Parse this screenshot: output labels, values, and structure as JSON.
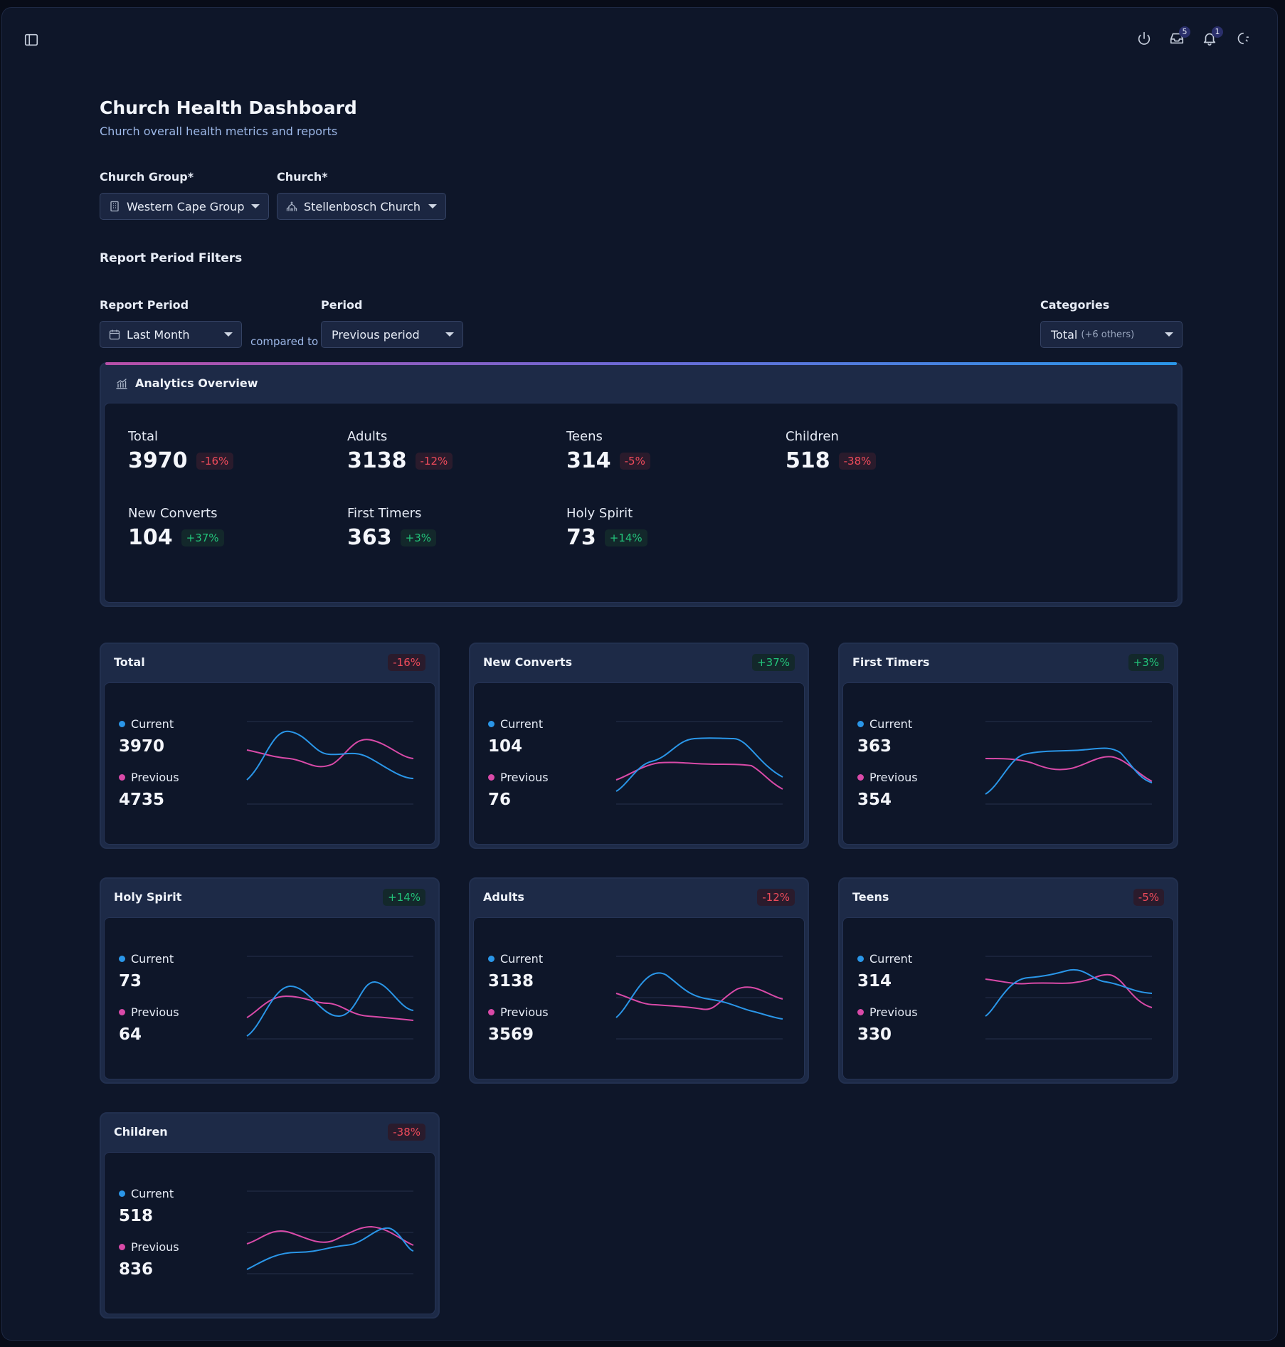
{
  "header": {
    "icons": [
      "sidebar-toggle-icon",
      "power-icon",
      "inbox-icon",
      "bell-icon",
      "theme-icon"
    ],
    "inbox_badge": "5",
    "bell_badge": "1"
  },
  "page": {
    "title": "Church Health Dashboard",
    "subtitle": "Church overall health metrics and reports"
  },
  "filters": {
    "church_group_label": "Church Group*",
    "church_group_value": "Western Cape Group",
    "church_label": "Church*",
    "church_value": "Stellenbosch Church",
    "section_title": "Report Period Filters",
    "report_period_label": "Report Period",
    "report_period_value": "Last Month",
    "compared_to": "compared to",
    "period_label": "Period",
    "period_value": "Previous period",
    "categories_label": "Categories",
    "categories_value": "Total",
    "categories_more": "(+6 others)"
  },
  "overview": {
    "title": "Analytics Overview",
    "stats": [
      {
        "label": "Total",
        "value": "3970",
        "change": "-16%"
      },
      {
        "label": "Adults",
        "value": "3138",
        "change": "-12%"
      },
      {
        "label": "Teens",
        "value": "314",
        "change": "-5%"
      },
      {
        "label": "Children",
        "value": "518",
        "change": "-38%"
      },
      {
        "label": "New Converts",
        "value": "104",
        "change": "+37%"
      },
      {
        "label": "First Timers",
        "value": "363",
        "change": "+3%"
      },
      {
        "label": "Holy Spirit",
        "value": "73",
        "change": "+14%"
      }
    ]
  },
  "legend": {
    "current": "Current",
    "previous": "Previous"
  },
  "colors": {
    "current": "#2a96e8",
    "previous": "#d94aa8",
    "negative": "#ef4b5b",
    "positive": "#22c37a"
  },
  "cards": [
    {
      "title": "Total",
      "change": "-16%",
      "current": "3970",
      "previous": "4735"
    },
    {
      "title": "New Converts",
      "change": "+37%",
      "current": "104",
      "previous": "76"
    },
    {
      "title": "First Timers",
      "change": "+3%",
      "current": "363",
      "previous": "354"
    },
    {
      "title": "Holy Spirit",
      "change": "+14%",
      "current": "73",
      "previous": "64"
    },
    {
      "title": "Adults",
      "change": "-12%",
      "current": "3138",
      "previous": "3569"
    },
    {
      "title": "Teens",
      "change": "-5%",
      "current": "314",
      "previous": "330"
    },
    {
      "title": "Children",
      "change": "-38%",
      "current": "518",
      "previous": "836"
    }
  ]
}
